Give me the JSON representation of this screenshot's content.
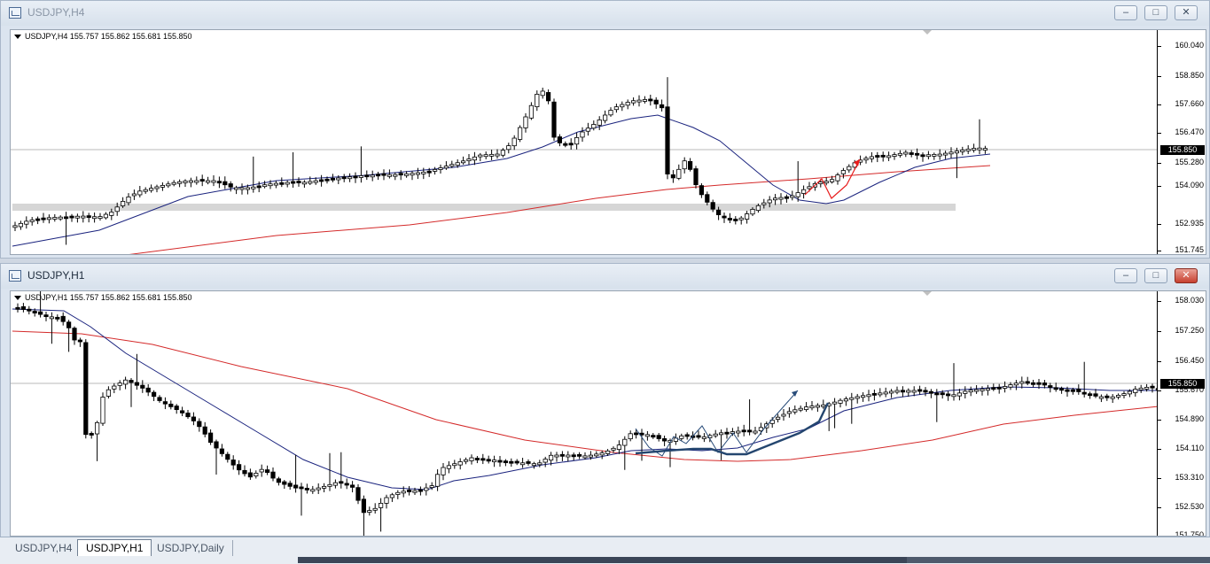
{
  "colors": {
    "sma_fast": "#1a237e",
    "sma_slow": "#d42a2a",
    "bull": "#ffffff",
    "bear": "#000000",
    "annotation_red": "#e81c1c",
    "annotation_blue": "#2a4d7a"
  },
  "windows": [
    {
      "title": "USDJPY,H4",
      "info": "USDJPY,H4  155.757 155.862 155.681 155.850",
      "price_ticks": [
        "160.040",
        "158.850",
        "157.660",
        "156.470",
        "155.280",
        "154.090",
        "152.935",
        "151.745"
      ],
      "current_price": "155.850",
      "buttons": {
        "minimize": "–",
        "restore": "□",
        "close": "✕"
      }
    },
    {
      "title": "USDJPY,H1",
      "info": "USDJPY,H1  155.757 155.862 155.681 155.850",
      "price_ticks": [
        "158.030",
        "157.250",
        "156.450",
        "155.670",
        "154.890",
        "154.110",
        "153.310",
        "152.530",
        "151.750"
      ],
      "current_price": "155.850",
      "buttons": {
        "minimize": "–",
        "restore": "□",
        "close": "✕"
      }
    }
  ],
  "tabs": [
    "USDJPY,H4",
    "USDJPY,H1",
    "USDJPY,Daily"
  ],
  "active_tab": "USDJPY,H1"
}
